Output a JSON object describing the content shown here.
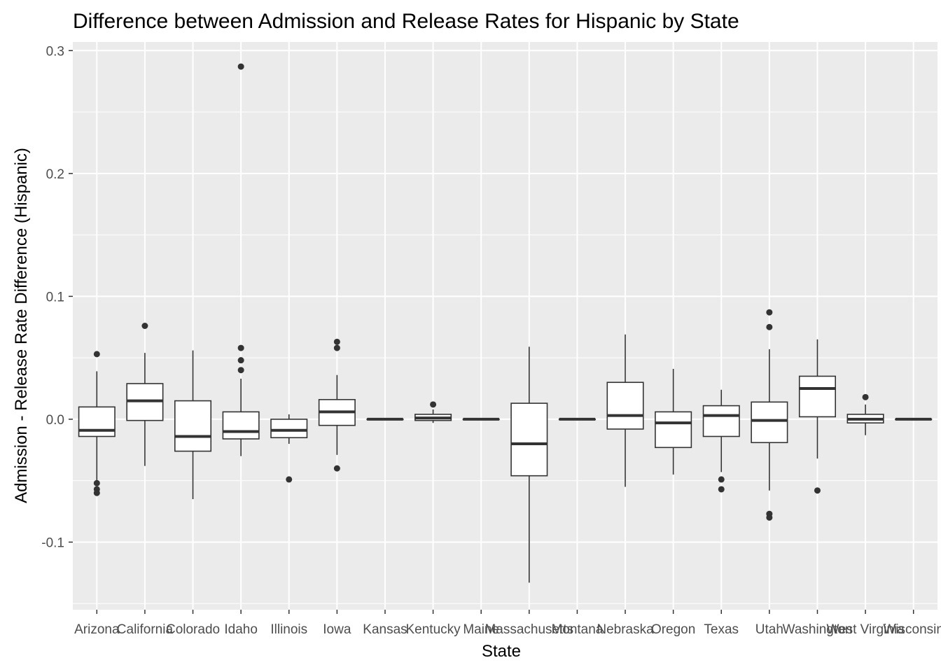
{
  "chart_data": {
    "type": "boxplot",
    "title": "Difference between Admission and Release Rates for Hispanic by State",
    "xlabel": "State",
    "ylabel": "Admission - Release Rate Difference (Hispanic)",
    "ylim": [
      -0.155,
      0.307
    ],
    "yticks": [
      -0.1,
      0.0,
      0.1,
      0.2,
      0.3
    ],
    "ytick_labels": [
      "-0.1",
      "0.0",
      "0.1",
      "0.2",
      "0.3"
    ],
    "grid": true,
    "legend": "none",
    "colors": {
      "panel": "#ebebeb",
      "grid": "#ffffff",
      "box_fill": "#ffffff",
      "box_line": "#333333",
      "text": "#4d4d4d"
    },
    "categories": [
      "Arizona",
      "California",
      "Colorado",
      "Idaho",
      "Illinois",
      "Iowa",
      "Kansas",
      "Kentucky",
      "Maine",
      "Massachusetts",
      "Montana",
      "Nebraska",
      "Oregon",
      "Texas",
      "Utah",
      "Washington",
      "West Virginia",
      "Wisconsin"
    ],
    "boxes": [
      {
        "state": "Arizona",
        "q1": -0.014,
        "median": -0.009,
        "q3": 0.01,
        "whisker_low": -0.05,
        "whisker_high": 0.039,
        "outliers": [
          0.053,
          -0.052,
          -0.057,
          -0.06
        ]
      },
      {
        "state": "California",
        "q1": -0.001,
        "median": 0.015,
        "q3": 0.029,
        "whisker_low": -0.038,
        "whisker_high": 0.054,
        "outliers": [
          0.076
        ]
      },
      {
        "state": "Colorado",
        "q1": -0.026,
        "median": -0.014,
        "q3": 0.015,
        "whisker_low": -0.065,
        "whisker_high": 0.056,
        "outliers": []
      },
      {
        "state": "Idaho",
        "q1": -0.016,
        "median": -0.01,
        "q3": 0.006,
        "whisker_low": -0.03,
        "whisker_high": 0.033,
        "outliers": [
          0.287,
          0.058,
          0.048,
          0.04
        ]
      },
      {
        "state": "Illinois",
        "q1": -0.015,
        "median": -0.009,
        "q3": 0.0,
        "whisker_low": -0.02,
        "whisker_high": 0.004,
        "outliers": [
          -0.049
        ]
      },
      {
        "state": "Iowa",
        "q1": -0.005,
        "median": 0.006,
        "q3": 0.016,
        "whisker_low": -0.029,
        "whisker_high": 0.036,
        "outliers": [
          0.063,
          0.058,
          -0.04
        ]
      },
      {
        "state": "Kansas",
        "q1": 0.0,
        "median": 0.0,
        "q3": 0.0,
        "whisker_low": 0.0,
        "whisker_high": 0.0,
        "outliers": []
      },
      {
        "state": "Kentucky",
        "q1": -0.001,
        "median": 0.001,
        "q3": 0.004,
        "whisker_low": -0.003,
        "whisker_high": 0.008,
        "outliers": [
          0.012
        ]
      },
      {
        "state": "Maine",
        "q1": 0.0,
        "median": 0.0,
        "q3": 0.0,
        "whisker_low": 0.0,
        "whisker_high": 0.0,
        "outliers": []
      },
      {
        "state": "Massachusetts",
        "q1": -0.046,
        "median": -0.02,
        "q3": 0.013,
        "whisker_low": -0.133,
        "whisker_high": 0.059,
        "outliers": []
      },
      {
        "state": "Montana",
        "q1": 0.0,
        "median": 0.0,
        "q3": 0.0,
        "whisker_low": 0.0,
        "whisker_high": 0.0,
        "outliers": []
      },
      {
        "state": "Nebraska",
        "q1": -0.008,
        "median": 0.003,
        "q3": 0.03,
        "whisker_low": -0.055,
        "whisker_high": 0.069,
        "outliers": []
      },
      {
        "state": "Oregon",
        "q1": -0.023,
        "median": -0.003,
        "q3": 0.006,
        "whisker_low": -0.045,
        "whisker_high": 0.041,
        "outliers": []
      },
      {
        "state": "Texas",
        "q1": -0.014,
        "median": 0.003,
        "q3": 0.011,
        "whisker_low": -0.043,
        "whisker_high": 0.024,
        "outliers": [
          -0.049,
          -0.057
        ]
      },
      {
        "state": "Utah",
        "q1": -0.019,
        "median": -0.001,
        "q3": 0.014,
        "whisker_low": -0.058,
        "whisker_high": 0.057,
        "outliers": [
          0.087,
          0.075,
          -0.077,
          -0.08
        ]
      },
      {
        "state": "Washington",
        "q1": 0.002,
        "median": 0.025,
        "q3": 0.035,
        "whisker_low": -0.032,
        "whisker_high": 0.065,
        "outliers": [
          -0.058
        ]
      },
      {
        "state": "West Virginia",
        "q1": -0.003,
        "median": 0.0,
        "q3": 0.004,
        "whisker_low": -0.013,
        "whisker_high": 0.012,
        "outliers": [
          0.018
        ]
      },
      {
        "state": "Wisconsin",
        "q1": 0.0,
        "median": 0.0,
        "q3": 0.0,
        "whisker_low": 0.0,
        "whisker_high": 0.0,
        "outliers": []
      }
    ]
  }
}
